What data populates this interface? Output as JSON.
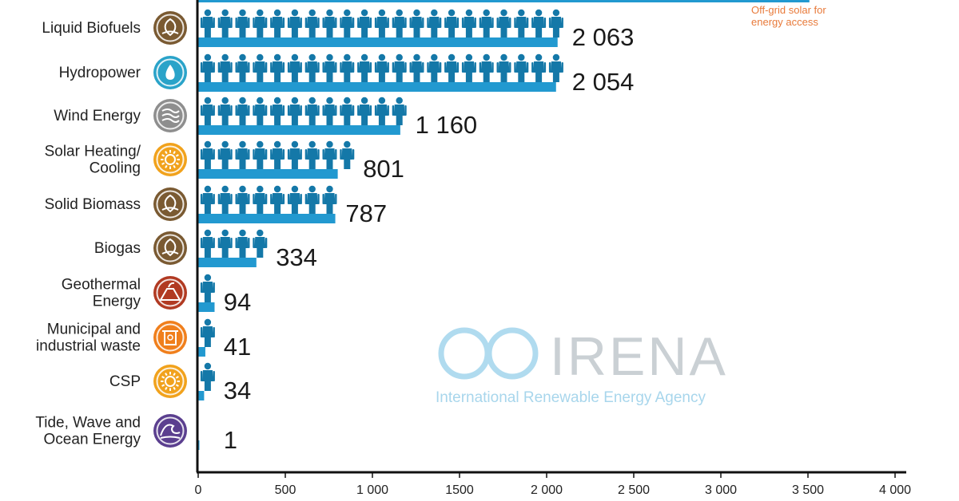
{
  "chart_data": {
    "type": "bar",
    "orientation": "horizontal",
    "categories": [
      "Liquid Biofuels",
      "Hydropower",
      "Wind Energy",
      "Solar Heating/\nCooling",
      "Solid Biomass",
      "Biogas",
      "Geothermal\nEnergy",
      "Municipal and\nindustrial waste",
      "CSP",
      "Tide, Wave and\nOcean Energy"
    ],
    "values": [
      2063,
      2054,
      1160,
      801,
      787,
      334,
      94,
      41,
      34,
      1
    ],
    "value_labels": [
      "2 063",
      "2 054",
      "1 160",
      "801",
      "787",
      "334",
      "94",
      "41",
      "34",
      "1"
    ],
    "icons": [
      "biofuel-leaf-icon",
      "hydropower-drop-icon",
      "wind-icon",
      "solar-sun-icon",
      "biomass-leaf-icon",
      "biogas-leaf-icon",
      "geothermal-volcano-icon",
      "waste-bin-icon",
      "csp-sun-icon",
      "ocean-wave-icon"
    ],
    "icon_colors": [
      "#7a5a32",
      "#2aa3c9",
      "#8e8e8e",
      "#f1a21c",
      "#7a5a32",
      "#7a5a32",
      "#b13a22",
      "#f07f1c",
      "#f1a21c",
      "#5b3f8f"
    ],
    "xticks": [
      0,
      500,
      1000,
      1500,
      2000,
      2500,
      3000,
      3500,
      4000
    ],
    "xtick_labels": [
      "0",
      "500",
      "1 000",
      "1500",
      "2 000",
      "2 500",
      "3 000",
      "3 500",
      "4 000"
    ],
    "xlim": [
      0,
      4100
    ],
    "grid": false,
    "bar_color": "#2299d0",
    "person_color": "#1478a8",
    "top_partial_bar": {
      "value": 3600,
      "annotation": [
        "Off-grid solar for",
        "energy access"
      ]
    },
    "watermark": {
      "title": "IRENA",
      "subtitle": "International Renewable Energy Agency"
    }
  }
}
